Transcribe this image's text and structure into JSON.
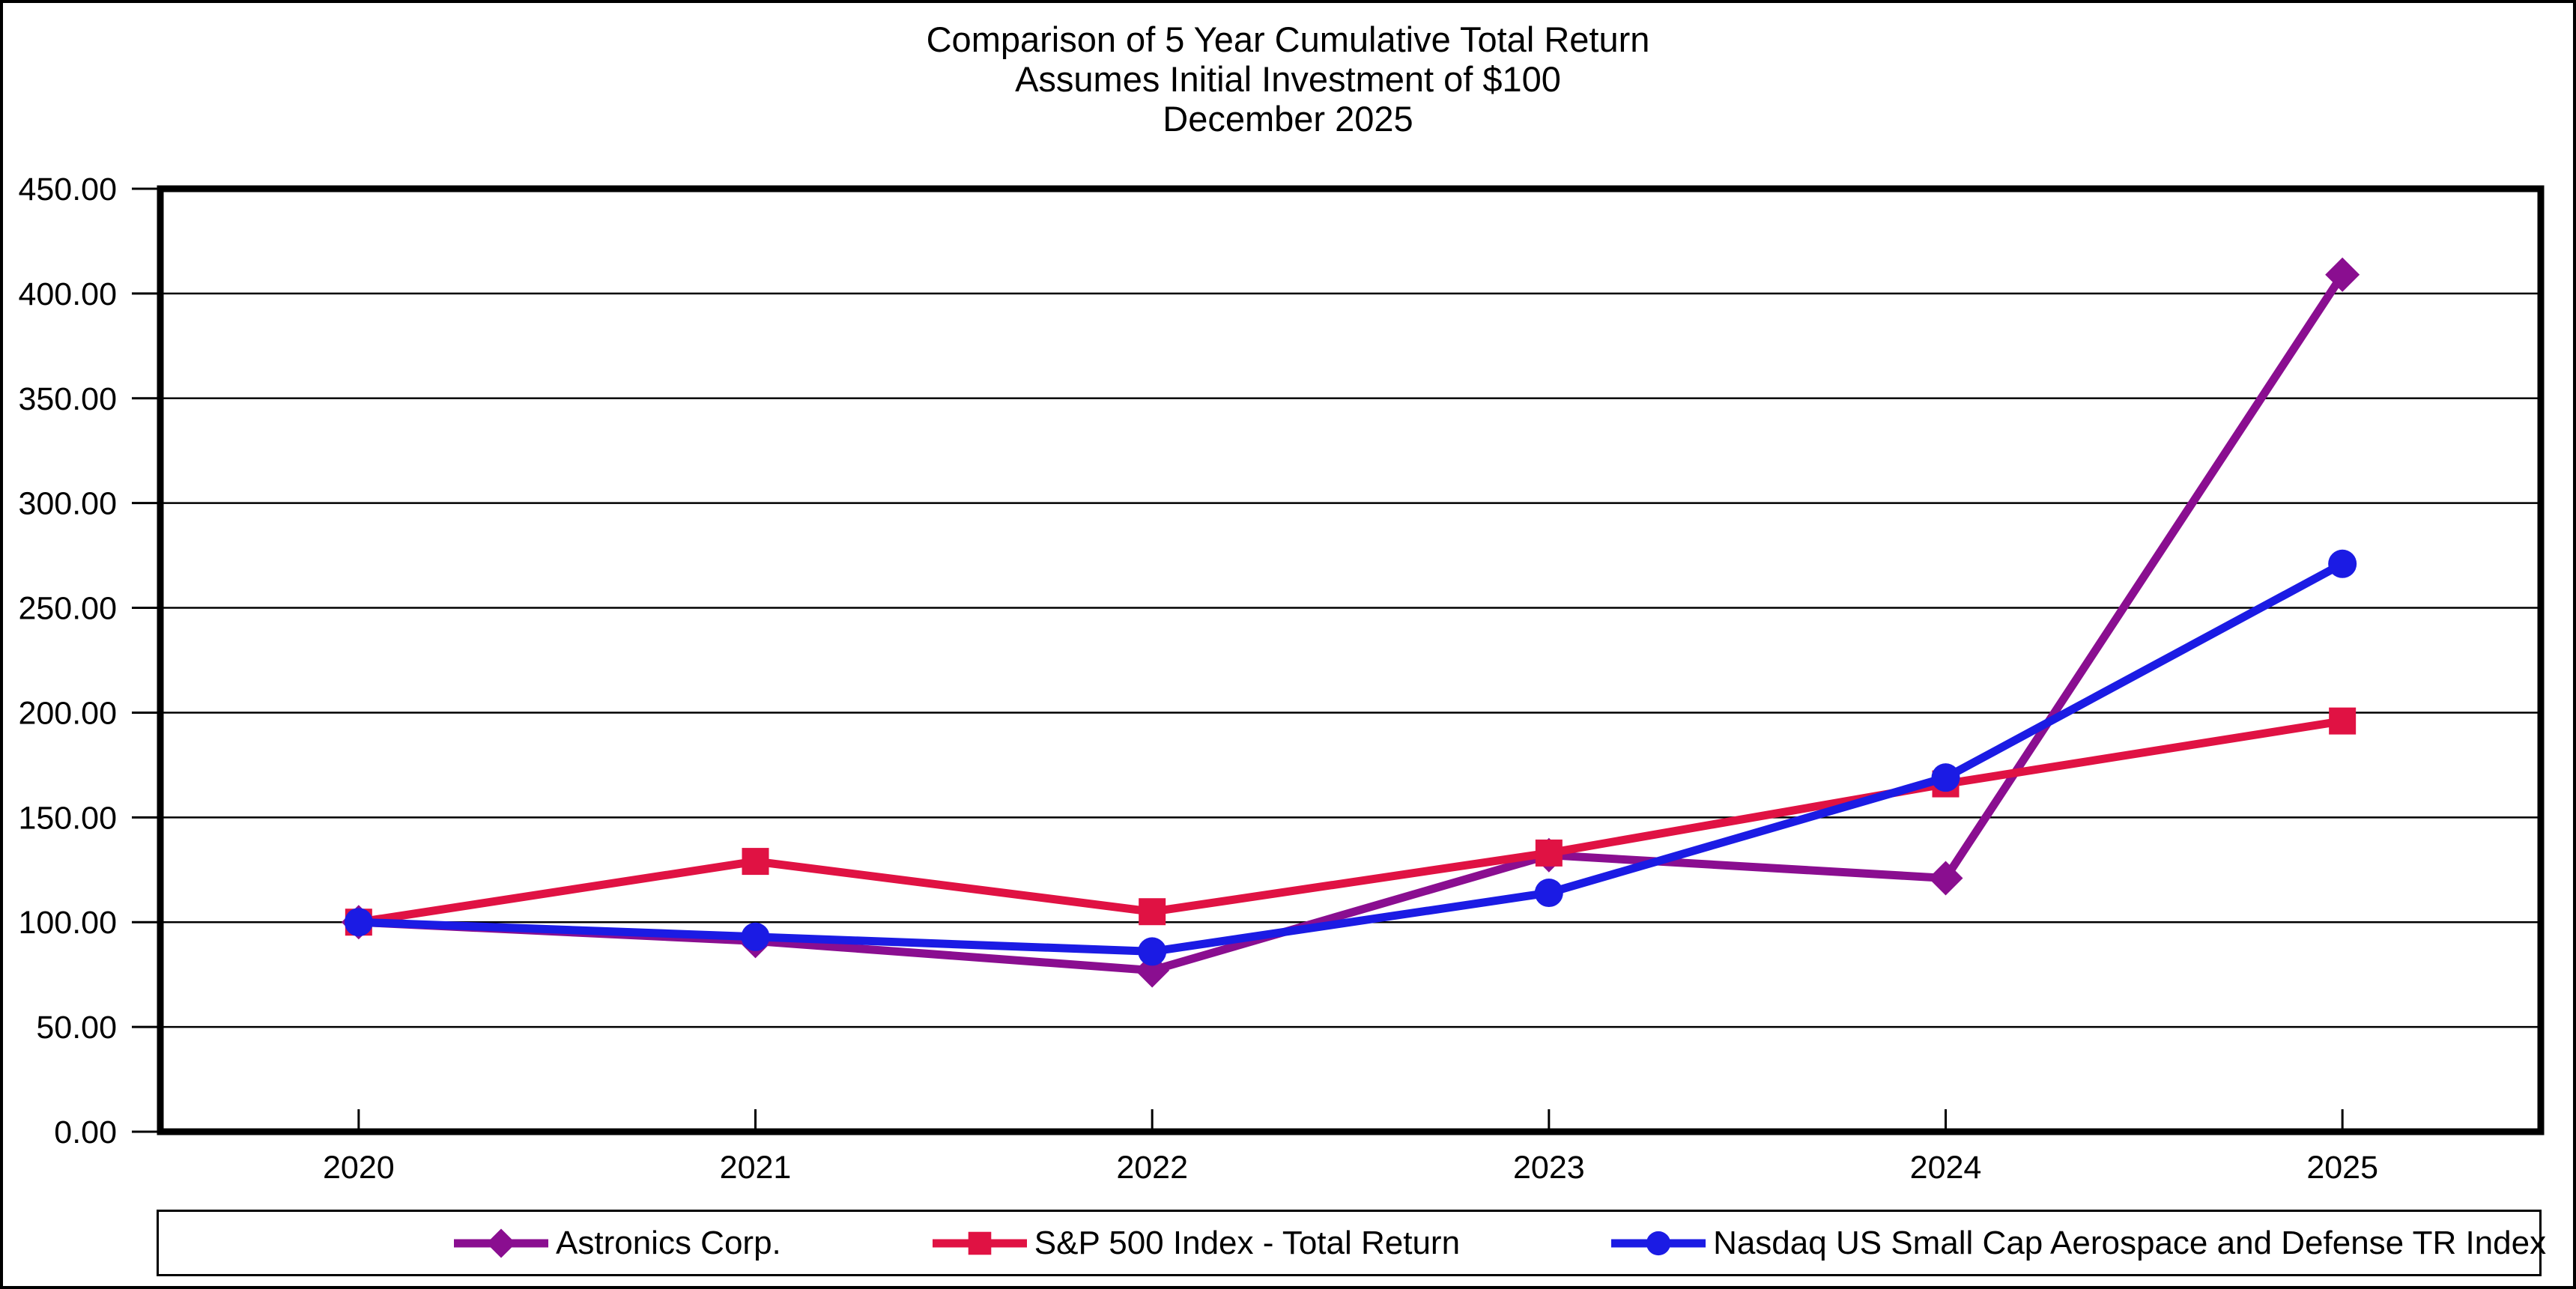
{
  "title": {
    "line1": "Comparison of 5 Year Cumulative Total Return",
    "line2": "Assumes Initial Investment of $100",
    "line3": "December 2025"
  },
  "chart_data": {
    "type": "line",
    "categories": [
      "2020",
      "2021",
      "2022",
      "2023",
      "2024",
      "2025"
    ],
    "series": [
      {
        "name": "Astronics Corp.",
        "color": "#8A0E90",
        "marker": "diamond",
        "values": [
          100,
          91,
          77,
          132,
          121,
          409
        ]
      },
      {
        "name": "S&P 500 Index - Total Return",
        "color": "#E01243",
        "marker": "square",
        "values": [
          100,
          129,
          105,
          133,
          166,
          196
        ]
      },
      {
        "name": "Nasdaq US Small Cap Aerospace and Defense TR Index",
        "color": "#1B1BE4",
        "marker": "circle",
        "values": [
          100,
          93,
          86,
          114,
          169,
          271
        ]
      }
    ],
    "ylim": [
      0,
      450
    ],
    "ytick_step": 50,
    "ytick_labels": [
      "0.00",
      "50.00",
      "100.00",
      "150.00",
      "200.00",
      "250.00",
      "300.00",
      "350.00",
      "400.00",
      "450.00"
    ],
    "grid": "horizontal",
    "legend_position": "bottom",
    "axis_color": "#000000"
  }
}
